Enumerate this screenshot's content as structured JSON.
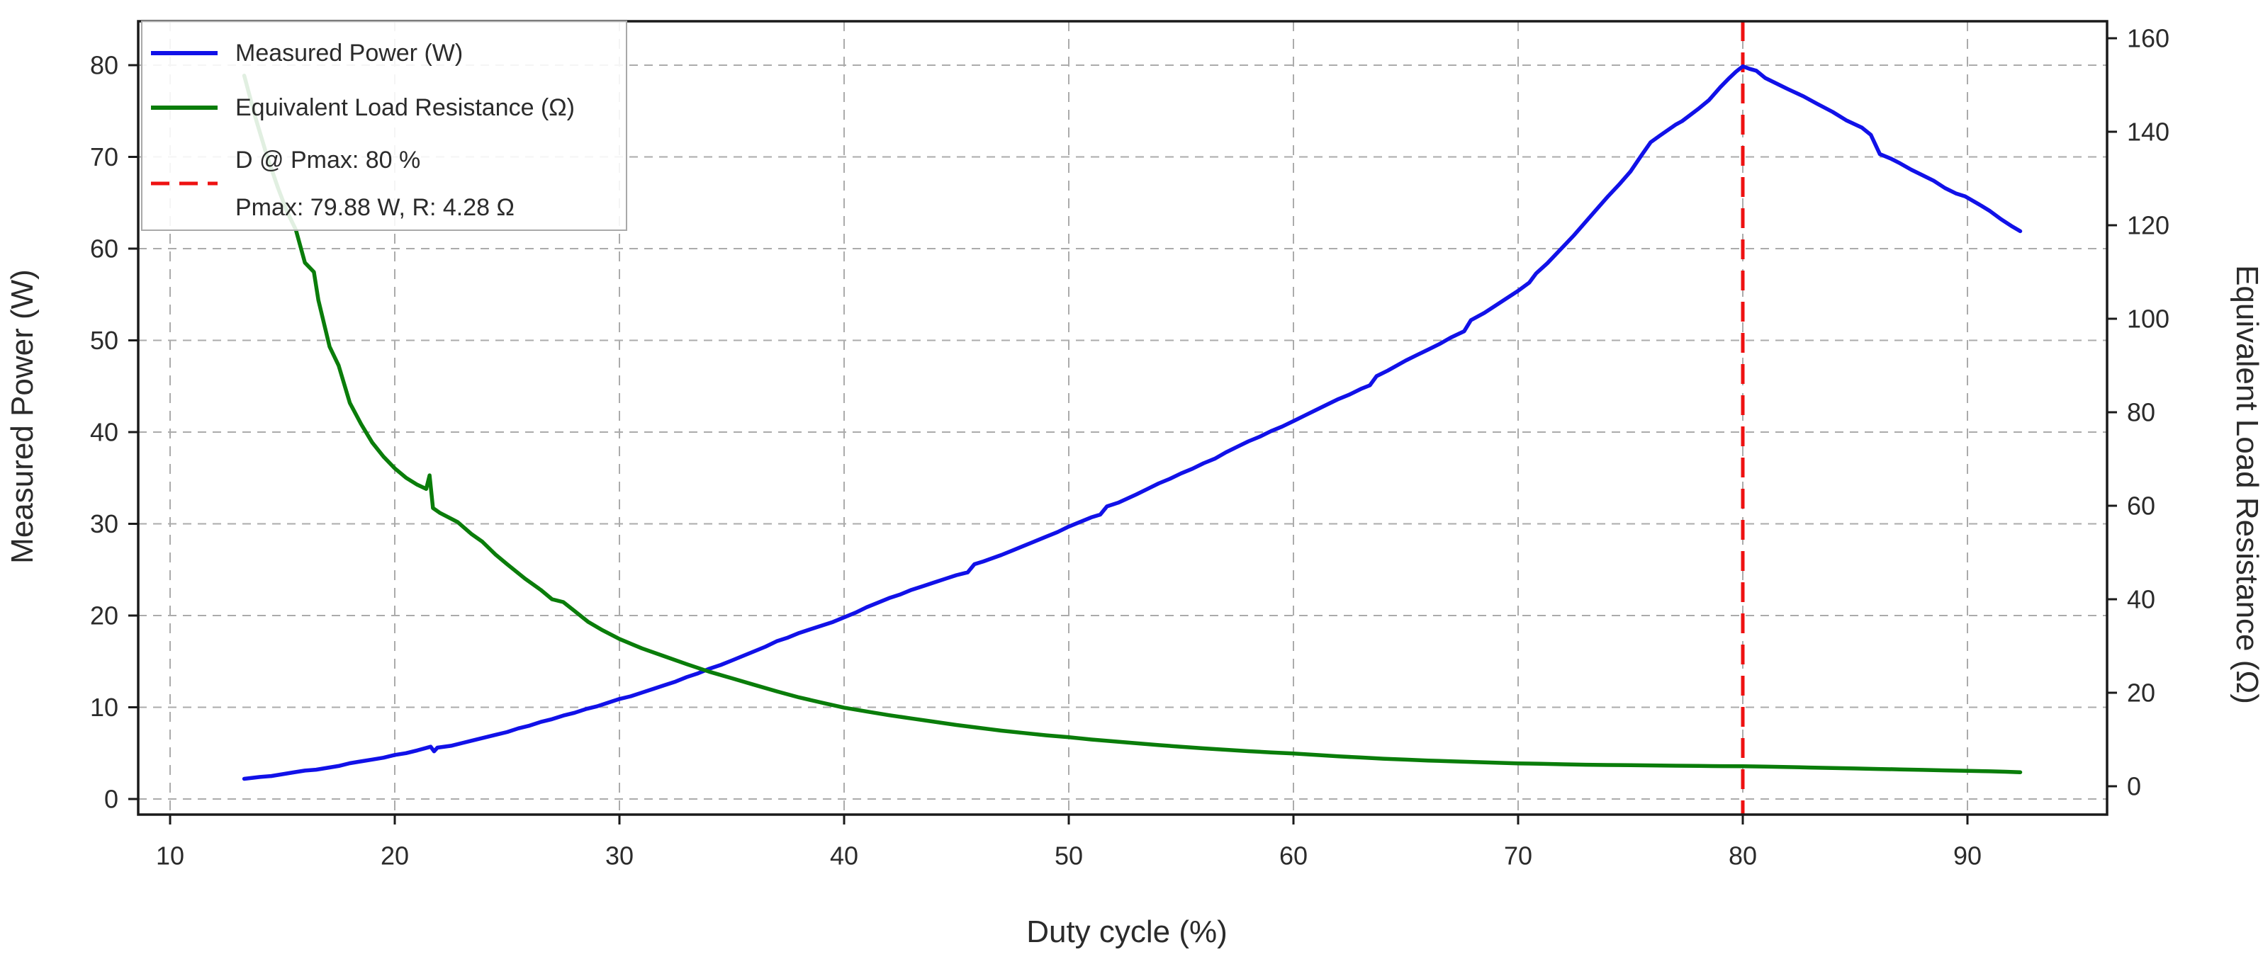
{
  "figure": {
    "xlabel": "Duty cycle (%)",
    "ylabel_left": "Measured Power (W)",
    "ylabel_right": "Equivalent Load Resistance (Ω)",
    "background": "#ffffff"
  },
  "legend": {
    "entries": [
      {
        "label": "Measured Power (W)",
        "color": "#1111e8",
        "style": "solid"
      },
      {
        "label": "Equivalent Load Resistance (Ω)",
        "color": "#0a7d0a",
        "style": "solid"
      },
      {
        "label_line1": "D @ Pmax: 80 %",
        "label_line2": "Pmax: 79.88 W, R: 4.28 Ω",
        "color": "#ee1111",
        "style": "dashed"
      }
    ]
  },
  "chart_data": {
    "type": "line",
    "title": "",
    "xlabel": "Duty cycle (%)",
    "grid": true,
    "legend_position": "upper left",
    "x_ticks": [
      10,
      20,
      30,
      40,
      50,
      60,
      70,
      80,
      90
    ],
    "xlim": [
      8.6,
      96.2
    ],
    "left_axis": {
      "label": "Measured Power (W)",
      "ticks": [
        0,
        10,
        20,
        30,
        40,
        50,
        60,
        70,
        80
      ],
      "lim": [
        -1.8,
        84.8
      ]
    },
    "right_axis": {
      "label": "Equivalent Load Resistance (Ω)",
      "ticks": [
        0,
        20,
        40,
        60,
        80,
        100,
        120,
        140,
        160
      ],
      "lim": [
        -6.1,
        163.6
      ]
    },
    "annotations": {
      "vline_x": 80,
      "vline_color": "#ee1111",
      "d_at_pmax_pct": 80,
      "pmax_w": 79.88,
      "r_at_pmax_ohm": 4.28
    },
    "colors": {
      "power": "#1111e8",
      "resistance": "#0a7d0a",
      "grid": "#ababab",
      "spine": "#1a1a1a"
    },
    "series": [
      {
        "name": "Measured Power (W)",
        "axis": "left",
        "color": "#1111e8",
        "points": [
          [
            13.3,
            2.2
          ],
          [
            14,
            2.4
          ],
          [
            14.5,
            2.5
          ],
          [
            15,
            2.7
          ],
          [
            15.5,
            2.9
          ],
          [
            16,
            3.1
          ],
          [
            16.5,
            3.2
          ],
          [
            17,
            3.4
          ],
          [
            17.5,
            3.6
          ],
          [
            18,
            3.9
          ],
          [
            18.5,
            4.1
          ],
          [
            19,
            4.3
          ],
          [
            19.5,
            4.5
          ],
          [
            20,
            4.8
          ],
          [
            20.5,
            5.0
          ],
          [
            21,
            5.3
          ],
          [
            21.6,
            5.7
          ],
          [
            21.75,
            5.2
          ],
          [
            21.9,
            5.6
          ],
          [
            22.5,
            5.8
          ],
          [
            23,
            6.1
          ],
          [
            23.5,
            6.4
          ],
          [
            24,
            6.7
          ],
          [
            24.5,
            7.0
          ],
          [
            25,
            7.3
          ],
          [
            25.5,
            7.7
          ],
          [
            26,
            8.0
          ],
          [
            26.5,
            8.4
          ],
          [
            27,
            8.7
          ],
          [
            27.5,
            9.1
          ],
          [
            28,
            9.4
          ],
          [
            28.5,
            9.8
          ],
          [
            29,
            10.1
          ],
          [
            29.5,
            10.5
          ],
          [
            30,
            10.9
          ],
          [
            30.5,
            11.2
          ],
          [
            31,
            11.6
          ],
          [
            31.5,
            12.0
          ],
          [
            32,
            12.4
          ],
          [
            32.5,
            12.8
          ],
          [
            33,
            13.3
          ],
          [
            33.5,
            13.7
          ],
          [
            34,
            14.2
          ],
          [
            34.5,
            14.6
          ],
          [
            35,
            15.1
          ],
          [
            35.5,
            15.6
          ],
          [
            36,
            16.1
          ],
          [
            36.5,
            16.6
          ],
          [
            37,
            17.2
          ],
          [
            37.5,
            17.6
          ],
          [
            38,
            18.1
          ],
          [
            38.5,
            18.5
          ],
          [
            39,
            18.9
          ],
          [
            39.5,
            19.3
          ],
          [
            40,
            19.8
          ],
          [
            40.5,
            20.3
          ],
          [
            41,
            20.9
          ],
          [
            41.5,
            21.4
          ],
          [
            42,
            21.9
          ],
          [
            42.5,
            22.3
          ],
          [
            43,
            22.8
          ],
          [
            43.5,
            23.2
          ],
          [
            44,
            23.6
          ],
          [
            44.5,
            24.0
          ],
          [
            45,
            24.4
          ],
          [
            45.5,
            24.7
          ],
          [
            45.8,
            25.6
          ],
          [
            46.2,
            25.9
          ],
          [
            47,
            26.6
          ],
          [
            47.5,
            27.1
          ],
          [
            48,
            27.6
          ],
          [
            48.5,
            28.1
          ],
          [
            49,
            28.6
          ],
          [
            49.5,
            29.1
          ],
          [
            50,
            29.7
          ],
          [
            50.5,
            30.2
          ],
          [
            51,
            30.7
          ],
          [
            51.4,
            31.0
          ],
          [
            51.7,
            31.9
          ],
          [
            52.2,
            32.3
          ],
          [
            53,
            33.2
          ],
          [
            53.5,
            33.8
          ],
          [
            54,
            34.4
          ],
          [
            54.5,
            34.9
          ],
          [
            55,
            35.5
          ],
          [
            55.5,
            36.0
          ],
          [
            56,
            36.6
          ],
          [
            56.5,
            37.1
          ],
          [
            57,
            37.8
          ],
          [
            57.5,
            38.4
          ],
          [
            58,
            39.0
          ],
          [
            58.5,
            39.5
          ],
          [
            59,
            40.1
          ],
          [
            59.5,
            40.6
          ],
          [
            60,
            41.2
          ],
          [
            60.5,
            41.8
          ],
          [
            61,
            42.4
          ],
          [
            61.5,
            43.0
          ],
          [
            62,
            43.6
          ],
          [
            62.5,
            44.1
          ],
          [
            63,
            44.7
          ],
          [
            63.4,
            45.1
          ],
          [
            63.7,
            46.1
          ],
          [
            64.2,
            46.7
          ],
          [
            65,
            47.8
          ],
          [
            65.5,
            48.4
          ],
          [
            66,
            49.0
          ],
          [
            66.5,
            49.6
          ],
          [
            67,
            50.3
          ],
          [
            67.6,
            51.0
          ],
          [
            67.9,
            52.2
          ],
          [
            68.5,
            53.0
          ],
          [
            69,
            53.8
          ],
          [
            69.5,
            54.6
          ],
          [
            70,
            55.4
          ],
          [
            70.5,
            56.3
          ],
          [
            70.8,
            57.3
          ],
          [
            71.3,
            58.4
          ],
          [
            72,
            60.2
          ],
          [
            72.5,
            61.5
          ],
          [
            73,
            62.9
          ],
          [
            73.5,
            64.3
          ],
          [
            74,
            65.7
          ],
          [
            74.5,
            67.0
          ],
          [
            75,
            68.4
          ],
          [
            75.5,
            70.2
          ],
          [
            75.9,
            71.6
          ],
          [
            76.3,
            72.3
          ],
          [
            77,
            73.5
          ],
          [
            77.3,
            73.9
          ],
          [
            78,
            75.2
          ],
          [
            78.5,
            76.2
          ],
          [
            79,
            77.6
          ],
          [
            79.4,
            78.6
          ],
          [
            79.7,
            79.3
          ],
          [
            80,
            79.88
          ],
          [
            80.3,
            79.6
          ],
          [
            80.6,
            79.4
          ],
          [
            81,
            78.6
          ],
          [
            81.5,
            78.0
          ],
          [
            82,
            77.4
          ],
          [
            82.7,
            76.6
          ],
          [
            83.3,
            75.8
          ],
          [
            84,
            74.9
          ],
          [
            84.6,
            74.0
          ],
          [
            85.3,
            73.2
          ],
          [
            85.7,
            72.4
          ],
          [
            86.1,
            70.3
          ],
          [
            86.6,
            69.8
          ],
          [
            87,
            69.3
          ],
          [
            87.5,
            68.6
          ],
          [
            88,
            68.0
          ],
          [
            88.5,
            67.4
          ],
          [
            89,
            66.6
          ],
          [
            89.5,
            66.0
          ],
          [
            89.9,
            65.7
          ],
          [
            90.6,
            64.7
          ],
          [
            91,
            64.1
          ],
          [
            91.5,
            63.2
          ],
          [
            92,
            62.4
          ],
          [
            92.35,
            61.9
          ]
        ]
      },
      {
        "name": "Equivalent Load Resistance (Ω)",
        "axis": "right",
        "color": "#0a7d0a",
        "points": [
          [
            13.3,
            152
          ],
          [
            13.8,
            143
          ],
          [
            14.3,
            135
          ],
          [
            14.8,
            128
          ],
          [
            15.2,
            123
          ],
          [
            15.6,
            119
          ],
          [
            16,
            112
          ],
          [
            16.4,
            110
          ],
          [
            16.6,
            104
          ],
          [
            17.1,
            94
          ],
          [
            17.5,
            90
          ],
          [
            18,
            82
          ],
          [
            18.5,
            77.5
          ],
          [
            19,
            73.5
          ],
          [
            19.5,
            70.5
          ],
          [
            20,
            68
          ],
          [
            20.5,
            66
          ],
          [
            21,
            64.5
          ],
          [
            21.4,
            63.6
          ],
          [
            21.55,
            66.5
          ],
          [
            21.7,
            59.5
          ],
          [
            22,
            58.5
          ],
          [
            22.8,
            56.5
          ],
          [
            23.4,
            54
          ],
          [
            23.9,
            52.3
          ],
          [
            24.5,
            49.5
          ],
          [
            25,
            47.5
          ],
          [
            25.8,
            44.4
          ],
          [
            26.5,
            42
          ],
          [
            27,
            40
          ],
          [
            27.5,
            39.4
          ],
          [
            28,
            37.5
          ],
          [
            28.6,
            35.2
          ],
          [
            29.2,
            33.5
          ],
          [
            30,
            31.5
          ],
          [
            31,
            29.5
          ],
          [
            32,
            27.8
          ],
          [
            33,
            26.1
          ],
          [
            34,
            24.5
          ],
          [
            35,
            23.1
          ],
          [
            36,
            21.7
          ],
          [
            37,
            20.3
          ],
          [
            38,
            19
          ],
          [
            39,
            17.9
          ],
          [
            40,
            16.8
          ],
          [
            41,
            16
          ],
          [
            42,
            15.2
          ],
          [
            43,
            14.5
          ],
          [
            44,
            13.8
          ],
          [
            45,
            13.1
          ],
          [
            46,
            12.5
          ],
          [
            47,
            11.9
          ],
          [
            48,
            11.4
          ],
          [
            49,
            10.9
          ],
          [
            50,
            10.5
          ],
          [
            51,
            10
          ],
          [
            52,
            9.6
          ],
          [
            53,
            9.2
          ],
          [
            54,
            8.8
          ],
          [
            55,
            8.45
          ],
          [
            56,
            8.1
          ],
          [
            57,
            7.8
          ],
          [
            58,
            7.5
          ],
          [
            59,
            7.25
          ],
          [
            60,
            7.0
          ],
          [
            61,
            6.7
          ],
          [
            62,
            6.4
          ],
          [
            63,
            6.15
          ],
          [
            64,
            5.9
          ],
          [
            65,
            5.7
          ],
          [
            66,
            5.5
          ],
          [
            67,
            5.35
          ],
          [
            68,
            5.2
          ],
          [
            69,
            5.05
          ],
          [
            70,
            4.9
          ],
          [
            71,
            4.8
          ],
          [
            72,
            4.7
          ],
          [
            73,
            4.6
          ],
          [
            74,
            4.55
          ],
          [
            75,
            4.5
          ],
          [
            76,
            4.45
          ],
          [
            77,
            4.4
          ],
          [
            78,
            4.35
          ],
          [
            79,
            4.3
          ],
          [
            80,
            4.28
          ],
          [
            81,
            4.2
          ],
          [
            82,
            4.1
          ],
          [
            83,
            4.0
          ],
          [
            84,
            3.9
          ],
          [
            85,
            3.8
          ],
          [
            86,
            3.7
          ],
          [
            87,
            3.6
          ],
          [
            88,
            3.5
          ],
          [
            89,
            3.4
          ],
          [
            90,
            3.3
          ],
          [
            91,
            3.2
          ],
          [
            91.7,
            3.1
          ],
          [
            92.35,
            3.0
          ]
        ]
      }
    ]
  }
}
